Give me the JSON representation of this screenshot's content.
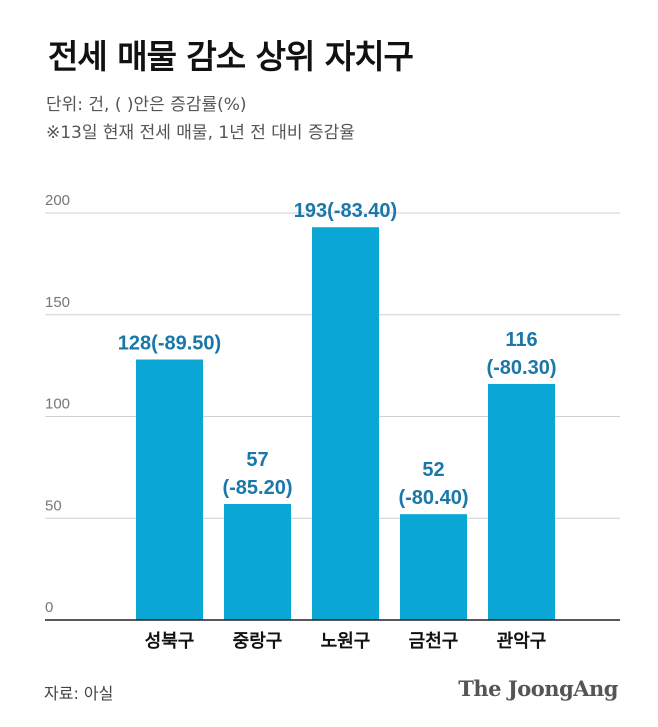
{
  "header": {
    "title": "전세 매물 감소 상위 자치구",
    "unit_note": "단위: 건, (  )안은 증감률(%)",
    "footnote": "※13일 현재 전세 매물, 1년 전 대비 증감율"
  },
  "footer": {
    "source": "자료: 아실",
    "logo": "The JoongAng"
  },
  "colors": {
    "bar": "#0aa6d6",
    "label": "#1a77aa",
    "grid": "#d0d0d0",
    "axis": "#222222"
  },
  "chart_data": {
    "type": "bar",
    "categories": [
      "성북구",
      "중랑구",
      "노원구",
      "금천구",
      "관악구"
    ],
    "values": [
      128,
      57,
      193,
      52,
      116
    ],
    "change_pct": [
      -89.5,
      -85.2,
      -83.4,
      -80.4,
      -80.3
    ],
    "data_labels": [
      [
        "128(-89.50)"
      ],
      [
        "57",
        "(-85.20)"
      ],
      [
        "193(-83.40)"
      ],
      [
        "52",
        "(-80.40)"
      ],
      [
        "116",
        "(-80.30)"
      ]
    ],
    "ylim": [
      0,
      200
    ],
    "yticks": [
      0,
      50,
      100,
      150,
      200
    ],
    "ytick_labels": [
      "0",
      "50",
      "100",
      "150",
      "200"
    ],
    "grid": true
  }
}
